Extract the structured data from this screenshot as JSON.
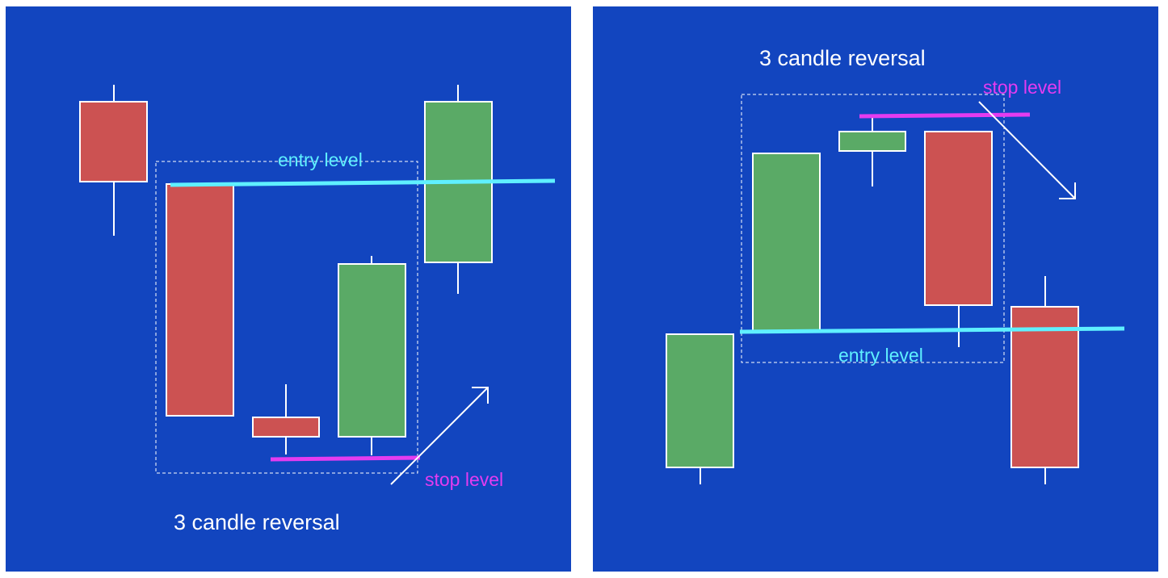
{
  "colors": {
    "background": "#1245bf",
    "bullish_candle": "#5aaa66",
    "bearish_candle": "#cc5252",
    "candle_outline": "#ffffff",
    "entry_line": "#5ff0ff",
    "stop_line": "#e43cf0",
    "arrow": "#ffffff",
    "dashed_box": "#ffffff"
  },
  "panels": [
    {
      "title": "3 candle reversal",
      "entry_label": "entry level",
      "stop_label": "stop level",
      "pattern": "bullish reversal",
      "candles": [
        "bearish",
        "bearish",
        "bearish",
        "bullish",
        "bullish"
      ],
      "arrow_direction": "up-right"
    },
    {
      "title": "3 candle reversal",
      "entry_label": "entry level",
      "stop_label": "stop level",
      "pattern": "bearish reversal",
      "candles": [
        "bullish",
        "bullish",
        "bullish",
        "bearish",
        "bearish"
      ],
      "arrow_direction": "down-right"
    }
  ]
}
